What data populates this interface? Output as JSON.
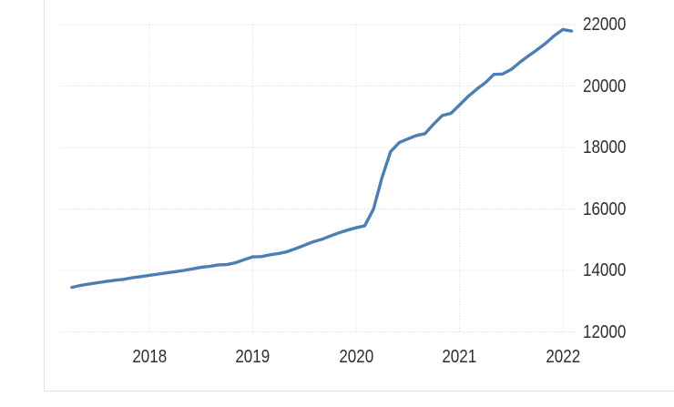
{
  "chart_data": {
    "type": "line",
    "title": "",
    "legend": "none",
    "grid": "dotted",
    "grid_color": "#d4d4d4",
    "line_color": "#4d7eb3",
    "text_color": "#2d2d33",
    "y_axis_side": "right",
    "xlim": [
      2017.15,
      2022.13
    ],
    "ylim": [
      12000,
      22000
    ],
    "x_ticks": [
      2018,
      2019,
      2020,
      2021,
      2022
    ],
    "x_tick_labels": [
      "2018",
      "2019",
      "2020",
      "2021",
      "2022"
    ],
    "y_ticks": [
      22000,
      20000,
      18000,
      16000,
      14000,
      12000
    ],
    "y_tick_labels": [
      "22000",
      "20000",
      "18000",
      "16000",
      "14000",
      "12000"
    ],
    "series": [
      {
        "x": [
          2017.25,
          2017.333,
          2017.417,
          2017.5,
          2017.583,
          2017.667,
          2017.75,
          2017.833,
          2017.917,
          2018,
          2018.083,
          2018.167,
          2018.25,
          2018.333,
          2018.417,
          2018.5,
          2018.583,
          2018.667,
          2018.75,
          2018.833,
          2018.917,
          2019,
          2019.083,
          2019.167,
          2019.25,
          2019.333,
          2019.417,
          2019.5,
          2019.583,
          2019.667,
          2019.75,
          2019.833,
          2019.917,
          2020,
          2020.083,
          2020.167,
          2020.25,
          2020.333,
          2020.417,
          2020.5,
          2020.583,
          2020.667,
          2020.75,
          2020.833,
          2020.917,
          2021,
          2021.083,
          2021.167,
          2021.25,
          2021.333,
          2021.417,
          2021.5,
          2021.583,
          2021.667,
          2021.75,
          2021.833,
          2021.917,
          2022,
          2022.083
        ],
        "values": [
          13450,
          13510,
          13560,
          13600,
          13640,
          13680,
          13710,
          13760,
          13800,
          13840,
          13880,
          13920,
          13960,
          14000,
          14050,
          14100,
          14130,
          14180,
          14190,
          14250,
          14350,
          14440,
          14450,
          14510,
          14550,
          14610,
          14710,
          14820,
          14930,
          15010,
          15120,
          15220,
          15310,
          15390,
          15450,
          15990,
          17020,
          17860,
          18160,
          18280,
          18390,
          18450,
          18760,
          19040,
          19110,
          19380,
          19660,
          19900,
          20110,
          20380,
          20390,
          20540,
          20770,
          20980,
          21180,
          21390,
          21640,
          21840,
          21790
        ]
      }
    ]
  }
}
